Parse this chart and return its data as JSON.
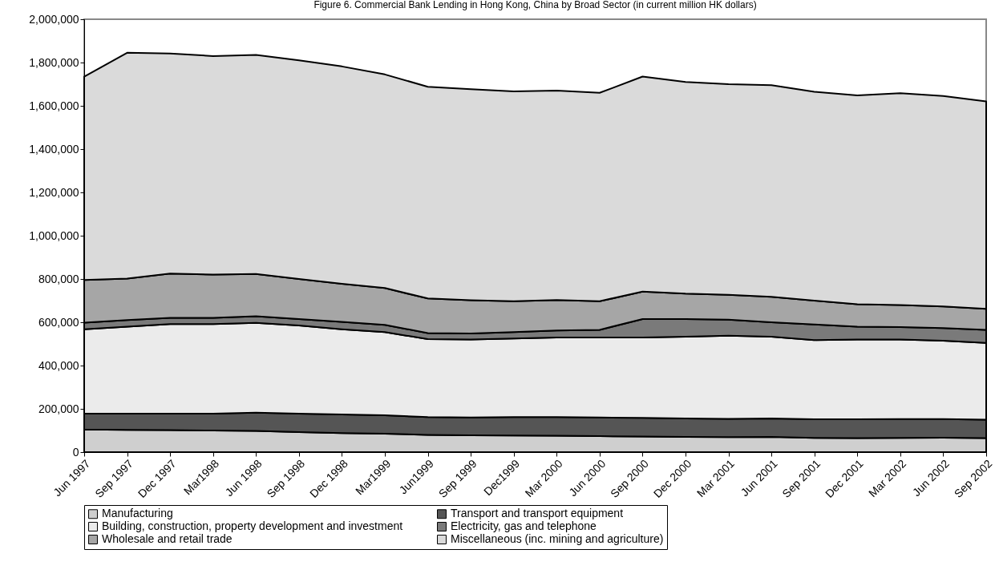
{
  "chart_data": {
    "type": "area",
    "title": "Figure 6. Commercial Bank Lending in Hong Kong, China by Broad Sector (in current million HK dollars)",
    "categories": [
      "Jun 1997",
      "Sep 1997",
      "Dec 1997",
      "Mar1998",
      "Jun 1998",
      "Sep 1998",
      "Dec 1998",
      "Mar1999",
      "Jun1999",
      "Sep 1999",
      "Dec1999",
      "Mar 2000",
      "Jun 2000",
      "Sep 2000",
      "Dec 2000",
      "Mar 2001",
      "Jun 2001",
      "Sep 2001",
      "Dec 2001",
      "Mar 2002",
      "Jun 2002",
      "Sep 2002"
    ],
    "stacked": true,
    "ylim": [
      0,
      2000000
    ],
    "yticks": [
      0,
      {
        "value": 200000,
        "label": "200,000"
      },
      {
        "value": 400000,
        "label": "400,000"
      },
      {
        "value": 600000,
        "label": "600,000"
      },
      {
        "value": 800000,
        "label": "800,000"
      },
      {
        "value": 1000000,
        "label": "1,000,000"
      },
      {
        "value": 1200000,
        "label": "1,200,000"
      },
      {
        "value": 1400000,
        "label": "1,400,000"
      },
      {
        "value": 1600000,
        "label": "1,600,000"
      },
      {
        "value": 1800000,
        "label": "1,800,000"
      },
      {
        "value": 2000000,
        "label": "2,000,000"
      }
    ],
    "grid": false,
    "legend": "bottom",
    "series": [
      {
        "name": "Manufacturing",
        "color": "#cfcfcf",
        "values": [
          105000,
          103000,
          102000,
          100000,
          98000,
          93000,
          88000,
          85000,
          80000,
          78000,
          77000,
          76000,
          74000,
          72000,
          70000,
          69000,
          70000,
          66000,
          65000,
          66000,
          67000,
          65000
        ]
      },
      {
        "name": "Transport and transport equipment",
        "color": "#555555",
        "values": [
          73000,
          75000,
          76000,
          78000,
          84000,
          85000,
          86000,
          85000,
          82000,
          82000,
          85000,
          86000,
          86000,
          86000,
          86000,
          85000,
          86000,
          86000,
          87000,
          87000,
          86000,
          85000
        ]
      },
      {
        "name": "Building, construction, property development and investment",
        "color": "#ebebeb",
        "values": [
          390000,
          402000,
          414000,
          414000,
          415000,
          407000,
          394000,
          385000,
          360000,
          360000,
          363000,
          368000,
          370000,
          372000,
          377000,
          384000,
          377000,
          366000,
          368000,
          367000,
          362000,
          355000
        ]
      },
      {
        "name": "Electricity, gas and telephone",
        "color": "#7a7a7a",
        "values": [
          30000,
          30000,
          28000,
          28000,
          31000,
          30000,
          34000,
          33000,
          28000,
          28000,
          30000,
          32000,
          35000,
          85000,
          82000,
          74000,
          67000,
          72000,
          60000,
          58000,
          58000,
          60000
        ]
      },
      {
        "name": "Wholesale and retail trade",
        "color": "#a6a6a6",
        "values": [
          197000,
          192000,
          205000,
          200000,
          195000,
          185000,
          176000,
          170000,
          160000,
          154000,
          142000,
          141000,
          132000,
          127000,
          117000,
          115000,
          118000,
          110000,
          103000,
          102000,
          100000,
          97000
        ]
      },
      {
        "name": "Miscellaneous (inc. mining and agriculture)",
        "color": "#dadada",
        "values": [
          940000,
          1043000,
          1017000,
          1010000,
          1012000,
          1010000,
          1004000,
          987000,
          978000,
          975000,
          970000,
          967000,
          963000,
          993000,
          978000,
          973000,
          977000,
          965000,
          965000,
          978000,
          972000,
          958000
        ]
      }
    ]
  }
}
